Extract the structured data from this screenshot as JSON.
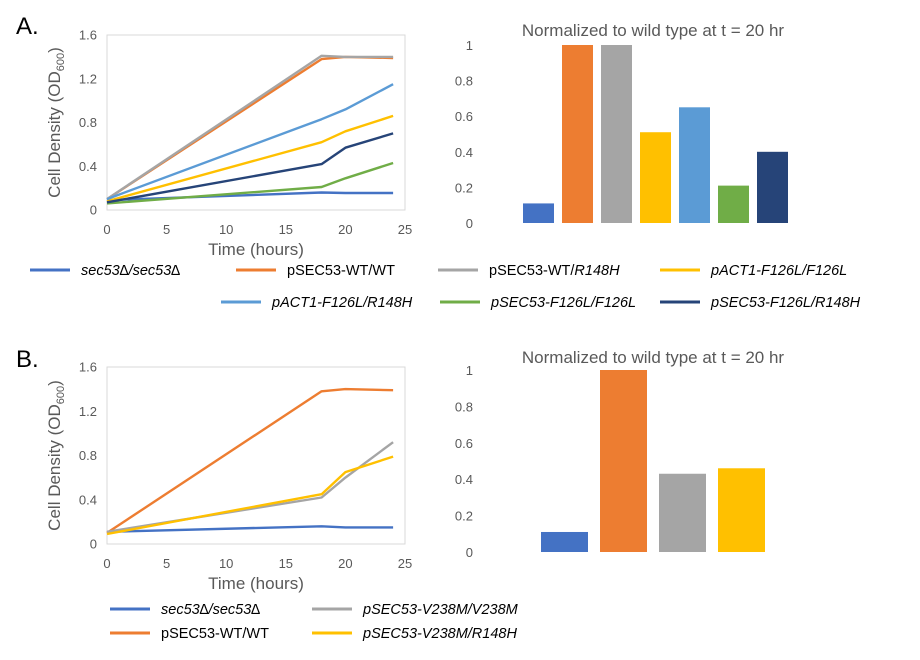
{
  "panels": [
    {
      "label": "A.",
      "line_chart": {
        "type": "line",
        "xlabel": "Time (hours)",
        "ylabel_main": "Cell Density (OD",
        "ylabel_sub": "600",
        "ylabel_close": ")",
        "xlim": [
          0,
          25
        ],
        "ylim": [
          0,
          1.6
        ],
        "x_ticks": [
          "0",
          "5",
          "10",
          "15",
          "20",
          "25"
        ],
        "y_ticks": [
          "0",
          "0.4",
          "0.8",
          "1.2",
          "1.6"
        ],
        "x": [
          0,
          18,
          20,
          24
        ],
        "series": [
          {
            "name": "sec53∆/sec53∆",
            "italic": true,
            "color": "#4472C4",
            "values": [
              0.09,
              0.16,
              0.155,
              0.155
            ]
          },
          {
            "name": "pSEC53-WT/WT",
            "italic": false,
            "color": "#ED7D31",
            "values": [
              0.1,
              1.38,
              1.4,
              1.39
            ]
          },
          {
            "name": "pSEC53-WT/R148H",
            "italic": false,
            "italic_suffix": "R148H",
            "color": "#A5A5A5",
            "values": [
              0.1,
              1.41,
              1.4,
              1.4
            ]
          },
          {
            "name": "pACT1-F126L/F126L",
            "italic": true,
            "color": "#FFC000",
            "values": [
              0.08,
              0.62,
              0.72,
              0.86
            ]
          },
          {
            "name": "pACT1-F126L/R148H",
            "italic": true,
            "color": "#5B9BD5",
            "values": [
              0.1,
              0.83,
              0.92,
              1.15
            ]
          },
          {
            "name": "pSEC53-F126L/F126L",
            "italic": true,
            "color": "#70AD47",
            "values": [
              0.06,
              0.21,
              0.29,
              0.43
            ]
          },
          {
            "name": "pSEC53-F126L/R148H",
            "italic": true,
            "color": "#264478",
            "values": [
              0.07,
              0.42,
              0.57,
              0.7
            ]
          }
        ]
      },
      "bar_chart": {
        "type": "bar",
        "title": "Normalized to wild type at t = 20 hr",
        "ylim": [
          0,
          1
        ],
        "y_ticks": [
          "0",
          "0.2",
          "0.4",
          "0.6",
          "0.8",
          "1"
        ],
        "values": [
          0.11,
          1.0,
          1.0,
          0.51,
          0.65,
          0.21,
          0.4
        ],
        "colors": [
          "#4472C4",
          "#ED7D31",
          "#A5A5A5",
          "#FFC000",
          "#5B9BD5",
          "#70AD47",
          "#264478"
        ]
      },
      "legend_rows": [
        [
          "sec53∆/sec53∆",
          "pSEC53-WT/WT",
          "pSEC53-WT/R148H",
          "pACT1-F126L/F126L"
        ],
        [
          "pACT1-F126L/R148H",
          "pSEC53-F126L/F126L",
          "pSEC53-F126L/R148H"
        ]
      ]
    },
    {
      "label": "B.",
      "line_chart": {
        "type": "line",
        "xlabel": "Time (hours)",
        "ylabel_main": "Cell Density (OD",
        "ylabel_sub": "600",
        "ylabel_close": ")",
        "xlim": [
          0,
          25
        ],
        "ylim": [
          0,
          1.6
        ],
        "x_ticks": [
          "0",
          "5",
          "10",
          "15",
          "20",
          "25"
        ],
        "y_ticks": [
          "0",
          "0.4",
          "0.8",
          "1.2",
          "1.6"
        ],
        "x": [
          0,
          18,
          20,
          24
        ],
        "series": [
          {
            "name": "sec53∆/sec53∆",
            "italic": true,
            "color": "#4472C4",
            "values": [
              0.11,
              0.16,
              0.15,
              0.15
            ]
          },
          {
            "name": "pSEC53-WT/WT",
            "italic": false,
            "color": "#ED7D31",
            "values": [
              0.1,
              1.38,
              1.4,
              1.39
            ]
          },
          {
            "name": "pSEC53-V238M/V238M",
            "italic": true,
            "color": "#A5A5A5",
            "values": [
              0.11,
              0.42,
              0.6,
              0.92
            ]
          },
          {
            "name": "pSEC53-V238M/R148H",
            "italic": true,
            "color": "#FFC000",
            "values": [
              0.09,
              0.45,
              0.65,
              0.79
            ]
          }
        ]
      },
      "bar_chart": {
        "type": "bar",
        "title": "Normalized to wild type at t = 20 hr",
        "ylim": [
          0,
          1
        ],
        "y_ticks": [
          "0",
          "0.2",
          "0.4",
          "0.6",
          "0.8",
          "1"
        ],
        "values": [
          0.11,
          1.0,
          0.43,
          0.46
        ],
        "colors": [
          "#4472C4",
          "#ED7D31",
          "#A5A5A5",
          "#FFC000"
        ]
      },
      "legend_rows": [
        [
          "sec53∆/sec53∆",
          "pSEC53-V238M/V238M"
        ],
        [
          "pSEC53-WT/WT",
          "pSEC53-V238M/R148H"
        ]
      ]
    }
  ]
}
